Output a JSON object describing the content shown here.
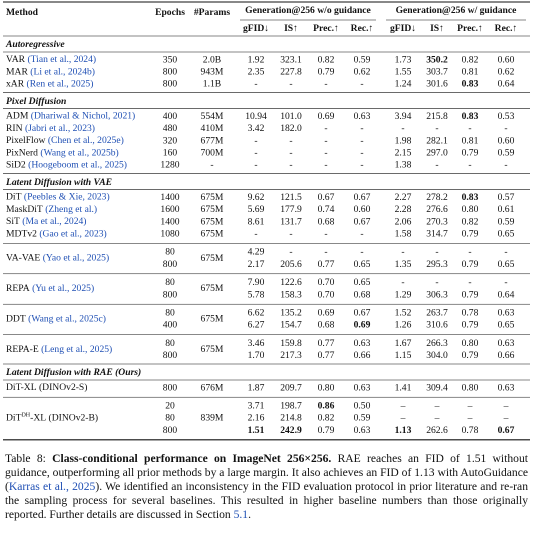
{
  "table": {
    "header": {
      "method": "Method",
      "epochs": "Epochs",
      "params": "#Params",
      "groups": [
        "Generation@256 w/o guidance",
        "Generation@256 w/ guidance"
      ],
      "metrics": [
        "gFID↓",
        "IS↑",
        "Prec.↑",
        "Rec.↑",
        "gFID↓",
        "IS↑",
        "Prec.↑",
        "Rec.↑"
      ]
    },
    "sections": [
      {
        "title": "Autoregressive",
        "rows": [
          {
            "method": "VAR",
            "cite": "(Tian et al., 2024)",
            "params": "2.0B",
            "lines": [
              {
                "epochs": "350",
                "values": [
                  "1.92",
                  "323.1",
                  "0.82",
                  "0.59",
                  "1.73",
                  {
                    "text": "350.2",
                    "bold": true
                  },
                  "0.82",
                  "0.60"
                ]
              }
            ]
          },
          {
            "method": "MAR",
            "cite": "(Li et al., 2024b)",
            "params": "943M",
            "lines": [
              {
                "epochs": "800",
                "values": [
                  "2.35",
                  "227.8",
                  "0.79",
                  "0.62",
                  "1.55",
                  "303.7",
                  "0.81",
                  "0.62"
                ]
              }
            ]
          },
          {
            "method": "xAR",
            "cite": "(Ren et al., 2025)",
            "params": "1.1B",
            "lines": [
              {
                "epochs": "800",
                "values": [
                  "-",
                  "-",
                  "-",
                  "-",
                  "1.24",
                  "301.6",
                  {
                    "text": "0.83",
                    "bold": true
                  },
                  "0.64"
                ]
              }
            ]
          }
        ]
      },
      {
        "title": "Pixel Diffusion",
        "rows": [
          {
            "method": "ADM",
            "cite": "(Dhariwal & Nichol, 2021)",
            "params": "554M",
            "lines": [
              {
                "epochs": "400",
                "values": [
                  "10.94",
                  "101.0",
                  "0.69",
                  "0.63",
                  "3.94",
                  "215.8",
                  {
                    "text": "0.83",
                    "bold": true
                  },
                  "0.53"
                ]
              }
            ]
          },
          {
            "method": "RIN",
            "cite": "(Jabri et al., 2023)",
            "params": "410M",
            "lines": [
              {
                "epochs": "480",
                "values": [
                  "3.42",
                  "182.0",
                  "-",
                  "-",
                  "-",
                  "-",
                  "-",
                  "-"
                ]
              }
            ]
          },
          {
            "method": "PixelFlow",
            "cite": "(Chen et al., 2025e)",
            "params": "677M",
            "lines": [
              {
                "epochs": "320",
                "values": [
                  "-",
                  "-",
                  "-",
                  "-",
                  "1.98",
                  "282.1",
                  "0.81",
                  "0.60"
                ]
              }
            ]
          },
          {
            "method": "PixNerd",
            "cite": "(Wang et al., 2025b)",
            "params": "700M",
            "lines": [
              {
                "epochs": "160",
                "values": [
                  "-",
                  "-",
                  "-",
                  "-",
                  "2.15",
                  "297.0",
                  "0.79",
                  "0.59"
                ]
              }
            ]
          },
          {
            "method": "SiD2",
            "cite": "(Hoogeboom et al., 2025)",
            "params": "-",
            "lines": [
              {
                "epochs": "1280",
                "values": [
                  "-",
                  "-",
                  "-",
                  "-",
                  "1.38",
                  "-",
                  "-",
                  "-"
                ]
              }
            ]
          }
        ]
      },
      {
        "title": "Latent Diffusion with VAE",
        "rows": [
          {
            "method": "DiT",
            "cite": "(Peebles & Xie, 2023)",
            "params": "675M",
            "lines": [
              {
                "epochs": "1400",
                "values": [
                  "9.62",
                  "121.5",
                  "0.67",
                  "0.67",
                  "2.27",
                  "278.2",
                  {
                    "text": "0.83",
                    "bold": true
                  },
                  "0.57"
                ]
              }
            ]
          },
          {
            "method": "MaskDiT",
            "cite": "(Zheng et al.)",
            "params": "675M",
            "lines": [
              {
                "epochs": "1600",
                "values": [
                  "5.69",
                  "177.9",
                  "0.74",
                  "0.60",
                  "2.28",
                  "276.6",
                  "0.80",
                  "0.61"
                ]
              }
            ]
          },
          {
            "method": "SiT",
            "cite": "(Ma et al., 2024)",
            "params": "675M",
            "lines": [
              {
                "epochs": "1400",
                "values": [
                  "8.61",
                  "131.7",
                  "0.68",
                  "0.67",
                  "2.06",
                  "270.3",
                  "0.82",
                  "0.59"
                ]
              }
            ]
          },
          {
            "method": "MDTv2",
            "cite": "(Gao et al., 2023)",
            "params": "675M",
            "lines": [
              {
                "epochs": "1080",
                "values": [
                  "-",
                  "-",
                  "-",
                  "-",
                  "1.58",
                  "314.7",
                  "0.79",
                  "0.65"
                ]
              }
            ]
          },
          {
            "method": "VA-VAE",
            "cite": "(Yao et al., 2025)",
            "params": "675M",
            "lines": [
              {
                "epochs": "80",
                "values": [
                  "4.29",
                  "-",
                  "-",
                  "-",
                  "-",
                  "-",
                  "-",
                  "-"
                ]
              },
              {
                "epochs": "800",
                "values": [
                  "2.17",
                  "205.6",
                  "0.77",
                  "0.65",
                  "1.35",
                  "295.3",
                  "0.79",
                  "0.65"
                ]
              }
            ]
          },
          {
            "method": "REPA",
            "cite": "(Yu et al., 2025)",
            "params": "675M",
            "lines": [
              {
                "epochs": "80",
                "values": [
                  "7.90",
                  "122.6",
                  "0.70",
                  "0.65",
                  "-",
                  "-",
                  "-",
                  "-"
                ]
              },
              {
                "epochs": "800",
                "values": [
                  "5.78",
                  "158.3",
                  "0.70",
                  "0.68",
                  "1.29",
                  "306.3",
                  "0.79",
                  "0.64"
                ]
              }
            ]
          },
          {
            "method": "DDT",
            "cite": "(Wang et al., 2025c)",
            "params": "675M",
            "lines": [
              {
                "epochs": "80",
                "values": [
                  "6.62",
                  "135.2",
                  "0.69",
                  "0.67",
                  "1.52",
                  "263.7",
                  "0.78",
                  "0.63"
                ]
              },
              {
                "epochs": "400",
                "values": [
                  "6.27",
                  "154.7",
                  "0.68",
                  {
                    "text": "0.69",
                    "bold": true
                  },
                  "1.26",
                  "310.6",
                  "0.79",
                  "0.65"
                ]
              }
            ]
          },
          {
            "method": "REPA-E",
            "cite": "(Leng et al., 2025)",
            "params": "675M",
            "lines": [
              {
                "epochs": "80",
                "values": [
                  "3.46",
                  "159.8",
                  "0.77",
                  "0.63",
                  "1.67",
                  "266.3",
                  "0.80",
                  "0.63"
                ]
              },
              {
                "epochs": "800",
                "values": [
                  "1.70",
                  "217.3",
                  "0.77",
                  "0.66",
                  "1.15",
                  "304.0",
                  "0.79",
                  "0.66"
                ]
              }
            ]
          }
        ]
      },
      {
        "title": "Latent Diffusion with RAE (Ours)",
        "rows": [
          {
            "method": "DiT-XL",
            "note": "(DINOv2-S)",
            "params": "676M",
            "lines": [
              {
                "epochs": "800",
                "values": [
                  "1.87",
                  "209.7",
                  "0.80",
                  "0.63",
                  "1.41",
                  "309.4",
                  "0.80",
                  "0.63"
                ]
              }
            ]
          },
          {
            "method": "DiT",
            "sup": "DH",
            "suffix": "-XL",
            "note": "(DINOv2-B)",
            "params": "839M",
            "lines": [
              {
                "epochs": "20",
                "values": [
                  "3.71",
                  "198.7",
                  {
                    "text": "0.86",
                    "bold": true
                  },
                  "0.50",
                  "–",
                  "–",
                  "–",
                  "–"
                ]
              },
              {
                "epochs": "80",
                "values": [
                  "2.16",
                  "214.8",
                  "0.82",
                  "0.59",
                  "–",
                  "–",
                  "–",
                  "–"
                ]
              },
              {
                "epochs": "800",
                "values": [
                  {
                    "text": "1.51",
                    "bold": true
                  },
                  {
                    "text": "242.9",
                    "bold": true
                  },
                  "0.79",
                  "0.63",
                  {
                    "text": "1.13",
                    "bold": true
                  },
                  "262.6",
                  "0.78",
                  {
                    "text": "0.67",
                    "bold": true
                  }
                ]
              }
            ]
          }
        ]
      }
    ]
  },
  "caption": [
    {
      "text": "Table 8: "
    },
    {
      "text": "Class-conditional performance on ImageNet 256×256.",
      "bold": true
    },
    {
      "text": " RAE reaches an FID of 1.51 without guidance, outperforming all prior methods by a large margin. It also achieves an FID of 1.13 with AutoGuidance ("
    },
    {
      "text": "Karras et al., 2025",
      "link": true
    },
    {
      "text": "). We identified an inconsistency in the FID evaluation protocol in prior literature and re-ran the sampling process for several baselines. This resulted in higher baseline numbers than those originally reported. Further details are discussed in Section "
    },
    {
      "text": "5.1",
      "link": true
    },
    {
      "text": "."
    }
  ]
}
